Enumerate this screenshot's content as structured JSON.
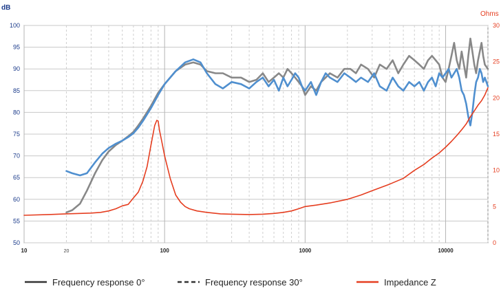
{
  "chart_data": {
    "type": "line",
    "x_scale": "log",
    "xlim": [
      10,
      20000
    ],
    "ylim_left": [
      50,
      100
    ],
    "ylim_right": [
      0,
      30
    ],
    "ylabel_left": "dB",
    "ylabel_right": "Ohms",
    "grid": true,
    "legend_position": "bottom",
    "x_tick_labels": [
      {
        "value": 10,
        "label": "10"
      },
      {
        "value": 20,
        "label": "20"
      },
      {
        "value": 100,
        "label": "100"
      },
      {
        "value": 1000,
        "label": "1000"
      },
      {
        "value": 10000,
        "label": "10000"
      }
    ],
    "y_left_ticks": [
      50,
      55,
      60,
      65,
      70,
      75,
      80,
      85,
      90,
      95,
      100
    ],
    "y_right_ticks": [
      0,
      5,
      10,
      15,
      20,
      25,
      30
    ],
    "series": [
      {
        "name": "Frequency response 0°",
        "axis": "left",
        "color": "#888888",
        "x": [
          20,
          22,
          25,
          28,
          32,
          36,
          40,
          45,
          50,
          55,
          60,
          65,
          70,
          80,
          90,
          100,
          120,
          140,
          160,
          180,
          200,
          230,
          260,
          300,
          350,
          400,
          450,
          500,
          550,
          600,
          650,
          700,
          750,
          800,
          850,
          900,
          950,
          1000,
          1100,
          1200,
          1300,
          1400,
          1500,
          1700,
          1900,
          2100,
          2300,
          2500,
          2800,
          3100,
          3400,
          3800,
          4200,
          4600,
          5000,
          5500,
          6000,
          6500,
          7000,
          7500,
          8000,
          8500,
          9000,
          9500,
          10000,
          10500,
          11000,
          11500,
          12000,
          12500,
          13000,
          13500,
          14000,
          14500,
          15000,
          15500,
          16000,
          16500,
          17000,
          17500,
          18000,
          18500,
          19000,
          20000
        ],
        "values": [
          57,
          57.5,
          59,
          62,
          66,
          69,
          71,
          72.5,
          73.5,
          74.5,
          75.5,
          77,
          78.5,
          81.5,
          84.5,
          86.5,
          89.5,
          91,
          91.5,
          91,
          89.5,
          89,
          89,
          88,
          88,
          87,
          87.5,
          89,
          87,
          88,
          89,
          88,
          90,
          89,
          88,
          87,
          86,
          84,
          86,
          85,
          87,
          88,
          89,
          88,
          90,
          90,
          89,
          91,
          90,
          88,
          91,
          90,
          92,
          89,
          91,
          93,
          92,
          91,
          90,
          92,
          93,
          92,
          91,
          88,
          87,
          90,
          93,
          96,
          92,
          90,
          94,
          91,
          88,
          93,
          97,
          94,
          91,
          89,
          92,
          94,
          96,
          93,
          91,
          90
        ]
      },
      {
        "name": "Frequency response 30°",
        "axis": "left",
        "color": "#4f8fcf",
        "x": [
          20,
          22,
          25,
          28,
          32,
          36,
          40,
          45,
          50,
          55,
          60,
          65,
          70,
          80,
          90,
          100,
          120,
          140,
          160,
          180,
          200,
          230,
          260,
          300,
          350,
          400,
          450,
          500,
          550,
          600,
          650,
          700,
          750,
          800,
          850,
          900,
          950,
          1000,
          1100,
          1200,
          1300,
          1400,
          1500,
          1700,
          1900,
          2100,
          2300,
          2500,
          2800,
          3100,
          3400,
          3800,
          4200,
          4600,
          5000,
          5500,
          6000,
          6500,
          7000,
          7500,
          8000,
          8500,
          9000,
          9500,
          10000,
          10500,
          11000,
          11500,
          12000,
          12500,
          13000,
          13500,
          14000,
          14500,
          15000,
          15500,
          16000,
          16500,
          17000,
          17500,
          18000,
          18500,
          19000,
          20000
        ],
        "values": [
          66.5,
          66,
          65.5,
          66,
          68.5,
          70.5,
          71.8,
          72.8,
          73.5,
          74.3,
          75.2,
          76.5,
          78,
          81,
          84,
          86.5,
          89.5,
          91.5,
          92.2,
          91.5,
          89,
          86.5,
          85.5,
          87,
          86.5,
          85.5,
          87,
          88,
          86,
          87.5,
          85,
          88,
          86,
          87.5,
          89,
          88,
          86,
          85,
          87,
          84,
          87,
          89,
          88,
          87,
          89,
          88,
          87,
          88,
          87,
          89,
          86,
          85,
          88,
          86,
          85,
          87,
          86,
          87,
          85,
          87,
          88,
          86,
          89,
          88,
          89,
          90,
          88,
          89,
          90,
          88,
          85,
          84,
          82,
          79,
          77,
          80,
          84,
          87,
          88,
          90,
          89,
          87,
          88,
          86
        ]
      },
      {
        "name": "Impedance Z",
        "axis": "right",
        "color": "#e53d1f",
        "x": [
          10,
          15,
          20,
          25,
          30,
          35,
          40,
          45,
          50,
          55,
          60,
          65,
          70,
          75,
          80,
          85,
          88,
          90,
          92,
          95,
          100,
          110,
          120,
          130,
          140,
          150,
          170,
          200,
          250,
          300,
          400,
          500,
          600,
          700,
          800,
          900,
          1000,
          1200,
          1500,
          2000,
          2500,
          3000,
          4000,
          5000,
          6000,
          7000,
          8000,
          9000,
          10000,
          11000,
          12000,
          13000,
          14000,
          15000,
          16000,
          17000,
          18000,
          19000,
          20000
        ],
        "values": [
          3.8,
          3.9,
          4.0,
          4.05,
          4.1,
          4.2,
          4.4,
          4.7,
          5.1,
          5.3,
          6.2,
          7.0,
          8.5,
          10.5,
          13.5,
          16.2,
          16.9,
          16.8,
          15.5,
          14.2,
          12.0,
          8.8,
          6.6,
          5.6,
          5.0,
          4.7,
          4.4,
          4.2,
          4.0,
          3.95,
          3.9,
          3.95,
          4.05,
          4.2,
          4.4,
          4.7,
          5.0,
          5.2,
          5.5,
          6.0,
          6.6,
          7.2,
          8.1,
          8.9,
          10.0,
          10.8,
          11.7,
          12.4,
          13.2,
          14.0,
          14.8,
          15.6,
          16.4,
          17.4,
          18.2,
          19.0,
          19.6,
          20.4,
          21.4
        ]
      }
    ]
  },
  "legend": {
    "items": [
      {
        "label": "Frequency response 0°",
        "style": "solid",
        "color": "#333333"
      },
      {
        "label": "Frequency response 30°",
        "style": "dashed",
        "color": "#333333"
      },
      {
        "label": "Impedance Z",
        "style": "solid",
        "color": "#e53d1f"
      }
    ]
  }
}
